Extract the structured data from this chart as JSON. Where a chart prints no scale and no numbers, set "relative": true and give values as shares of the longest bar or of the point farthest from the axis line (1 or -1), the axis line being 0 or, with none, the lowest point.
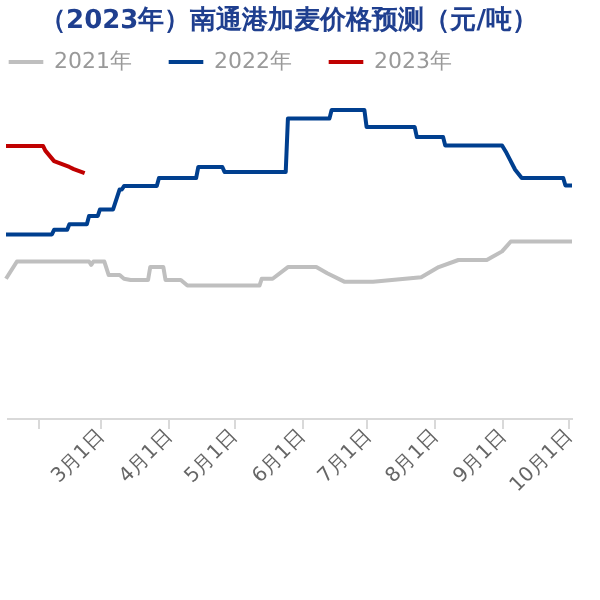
{
  "chart_data": {
    "type": "line",
    "title": "（2023年）南通港加麦价格预测（元/吨）",
    "relative": true,
    "legend": "top",
    "xlim": [
      "--01-17",
      "--10-03"
    ],
    "xticks": [
      {
        "value": "--02-01",
        "label": null
      },
      {
        "value": "--03-01",
        "label": "3月1日"
      },
      {
        "value": "--04-01",
        "label": "4月1日"
      },
      {
        "value": "--05-01",
        "label": "5月1日"
      },
      {
        "value": "--06-01",
        "label": "6月1日"
      },
      {
        "value": "--07-01",
        "label": "7月1日"
      },
      {
        "value": "--08-01",
        "label": "8月1日"
      },
      {
        "value": "--09-01",
        "label": "9月1日"
      },
      {
        "value": "--10-01",
        "label": "10月1日"
      }
    ],
    "series": [
      {
        "name": "2021年",
        "color": "#bfbfbf",
        "x": [
          "--01-17",
          "--01-22",
          "--02-24",
          "--02-25",
          "--02-26",
          "--03-03",
          "--03-05",
          "--03-10",
          "--03-12",
          "--03-15",
          "--03-23",
          "--03-24",
          "--03-30",
          "--03-31",
          "--04-07",
          "--04-10",
          "--05-13",
          "--05-14",
          "--05-19",
          "--05-26",
          "--06-08",
          "--06-13",
          "--06-21",
          "--07-04",
          "--07-26",
          "--08-03",
          "--08-12",
          "--08-25",
          "--09-01",
          "--09-05",
          "--10-03"
        ],
        "values": [
          0.452,
          0.508,
          0.508,
          0.497,
          0.508,
          0.508,
          0.464,
          0.464,
          0.452,
          0.448,
          0.448,
          0.49,
          0.49,
          0.448,
          0.448,
          0.43,
          0.43,
          0.452,
          0.452,
          0.49,
          0.49,
          0.47,
          0.442,
          0.442,
          0.457,
          0.49,
          0.513,
          0.513,
          0.541,
          0.573,
          0.573
        ]
      },
      {
        "name": "2022年",
        "color": "#003f8f",
        "x": [
          "--01-17",
          "--02-07",
          "--02-08",
          "--02-14",
          "--02-15",
          "--02-23",
          "--02-24",
          "--02-28",
          "--03-01",
          "--03-07",
          "--03-10",
          "--03-11",
          "--03-12",
          "--03-27",
          "--03-28",
          "--04-14",
          "--04-15",
          "--04-26",
          "--04-27",
          "--05-25",
          "--05-26",
          "--06-14",
          "--06-15",
          "--06-30",
          "--07-01",
          "--07-23",
          "--07-24",
          "--08-05",
          "--08-06",
          "--09-01",
          "--09-03",
          "--09-07",
          "--09-10",
          "--09-29",
          "--09-30",
          "--10-03"
        ],
        "values": [
          0.596,
          0.596,
          0.611,
          0.611,
          0.629,
          0.629,
          0.656,
          0.656,
          0.677,
          0.677,
          0.742,
          0.742,
          0.753,
          0.753,
          0.779,
          0.779,
          0.815,
          0.815,
          0.799,
          0.799,
          0.972,
          0.972,
          1,
          1,
          0.945,
          0.945,
          0.912,
          0.912,
          0.885,
          0.885,
          0.861,
          0.806,
          0.779,
          0.779,
          0.755,
          0.755
        ]
      },
      {
        "name": "2023年",
        "color": "#c00000",
        "x": [
          "--01-17",
          "--02-03",
          "--02-04",
          "--02-08",
          "--02-15",
          "--02-17",
          "--02-22"
        ],
        "values": [
          0.883,
          0.883,
          0.868,
          0.834,
          0.815,
          0.808,
          0.795
        ]
      }
    ]
  }
}
